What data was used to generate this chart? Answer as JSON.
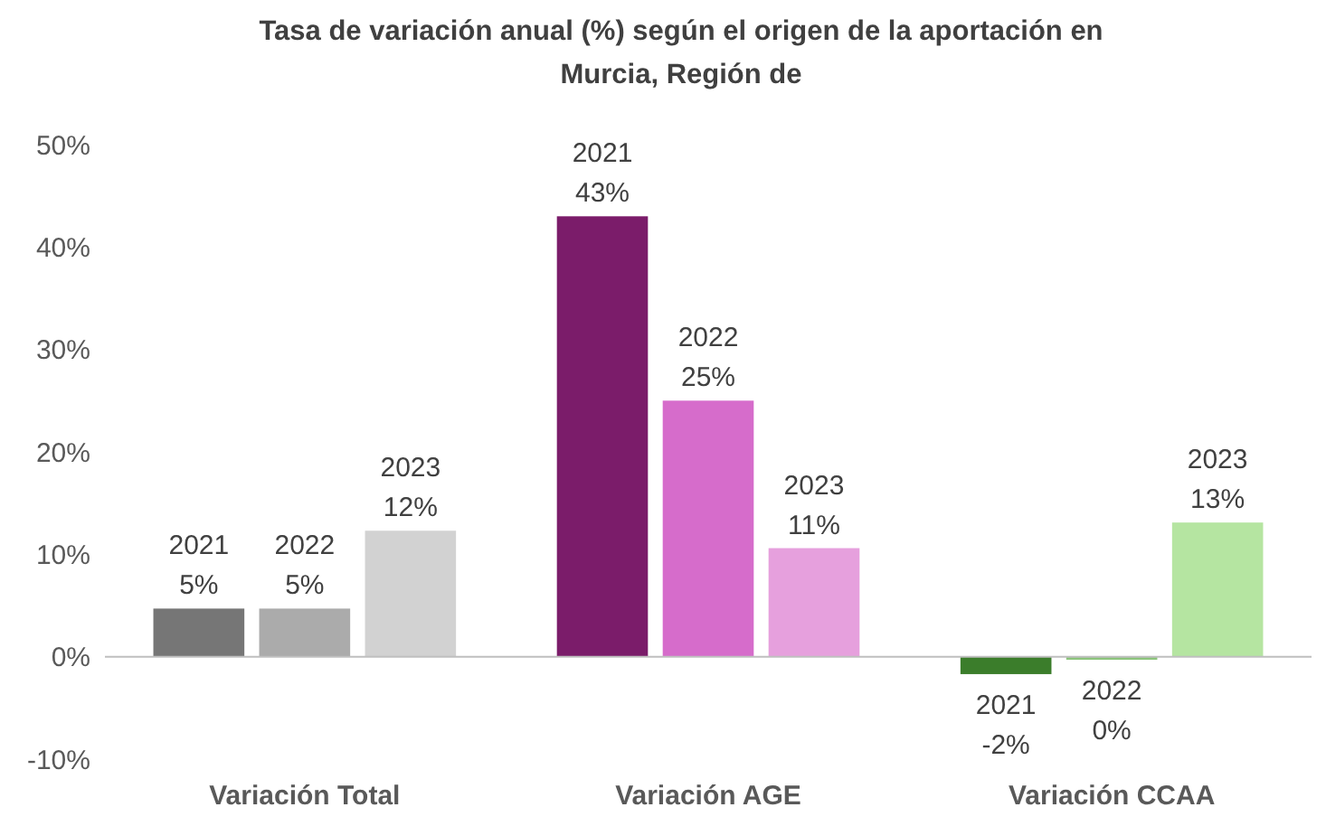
{
  "chart_data": {
    "type": "bar",
    "title": "Tasa de variación anual (%) según el origen de la aportación en Murcia, Región de",
    "categories": [
      "Variación Total",
      "Variación AGE",
      "Variación CCAA"
    ],
    "series": [
      {
        "name": "2021",
        "colors": [
          "#767676",
          "#7b1c6a",
          "#3b7d2b"
        ],
        "values": [
          4.7,
          43,
          -1.7
        ],
        "value_labels": [
          "5%",
          "43%",
          "-2%"
        ]
      },
      {
        "name": "2022",
        "colors": [
          "#ababab",
          "#d66ccb",
          "#8cc47c"
        ],
        "values": [
          4.7,
          25,
          -0.3
        ],
        "value_labels": [
          "5%",
          "25%",
          "0%"
        ]
      },
      {
        "name": "2023",
        "colors": [
          "#d2d2d2",
          "#e6a0dd",
          "#b5e5a1"
        ],
        "values": [
          12.3,
          10.6,
          13.1
        ],
        "value_labels": [
          "12%",
          "11%",
          "13%"
        ]
      }
    ],
    "ylim": [
      -10,
      50
    ],
    "yticks": [
      {
        "value": -10,
        "label": "-10%"
      },
      {
        "value": 0,
        "label": "0%"
      },
      {
        "value": 10,
        "label": "10%"
      },
      {
        "value": 20,
        "label": "20%"
      },
      {
        "value": 30,
        "label": "30%"
      },
      {
        "value": 40,
        "label": "40%"
      },
      {
        "value": 50,
        "label": "50%"
      }
    ]
  }
}
